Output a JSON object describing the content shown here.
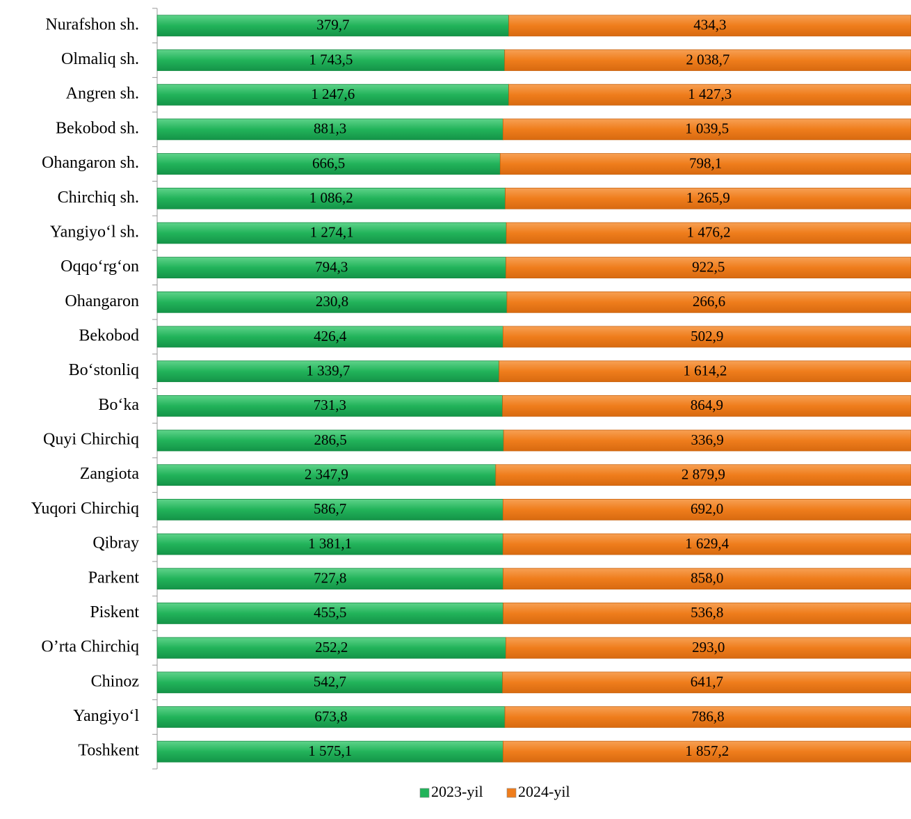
{
  "chart_data": {
    "type": "bar",
    "orientation": "horizontal",
    "stacked": "percent",
    "categories": [
      "Nurafshon sh.",
      "Olmaliq sh.",
      "Angren sh.",
      "Bekobod sh.",
      "Ohangaron sh.",
      "Chirchiq sh.",
      "Yangiyo‘l sh.",
      "Oqqo‘rg‘on",
      "Ohangaron",
      "Bekobod",
      "Bo‘stonliq",
      "Bo‘ka",
      "Quyi Chirchiq",
      "Zangiota",
      "Yuqori Chirchiq",
      "Qibray",
      "Parkent",
      "Piskent",
      "O’rta Chirchiq",
      "Chinoz",
      "Yangiyo‘l",
      "Toshkent"
    ],
    "series": [
      {
        "name": "2023-yil",
        "color": "#22b35a",
        "values": [
          379.7,
          1743.5,
          1247.6,
          881.3,
          666.5,
          1086.2,
          1274.1,
          794.3,
          230.8,
          426.4,
          1339.7,
          731.3,
          286.5,
          2347.9,
          586.7,
          1381.1,
          727.8,
          455.5,
          252.2,
          542.7,
          673.8,
          1575.1
        ],
        "value_labels": [
          "379,7",
          "1 743,5",
          "1 247,6",
          "881,3",
          "666,5",
          "1 086,2",
          "1 274,1",
          "794,3",
          "230,8",
          "426,4",
          "1 339,7",
          "731,3",
          "286,5",
          "2 347,9",
          "586,7",
          "1 381,1",
          "727,8",
          "455,5",
          "252,2",
          "542,7",
          "673,8",
          "1 575,1"
        ]
      },
      {
        "name": "2024-yil",
        "color": "#ef7d1c",
        "values": [
          434.3,
          2038.7,
          1427.3,
          1039.5,
          798.1,
          1265.9,
          1476.2,
          922.5,
          266.6,
          502.9,
          1614.2,
          864.9,
          336.9,
          2879.9,
          692.0,
          1629.4,
          858.0,
          536.8,
          293.0,
          641.7,
          786.8,
          1857.2
        ],
        "value_labels": [
          "434,3",
          "2 038,7",
          "1 427,3",
          "1 039,5",
          "798,1",
          "1 265,9",
          "1 476,2",
          "922,5",
          "266,6",
          "502,9",
          "1 614,2",
          "864,9",
          "336,9",
          "2 879,9",
          "692,0",
          "1 629,4",
          "858,0",
          "536,8",
          "293,0",
          "641,7",
          "786,8",
          "1 857,2"
        ]
      }
    ],
    "legend": "bottom"
  }
}
